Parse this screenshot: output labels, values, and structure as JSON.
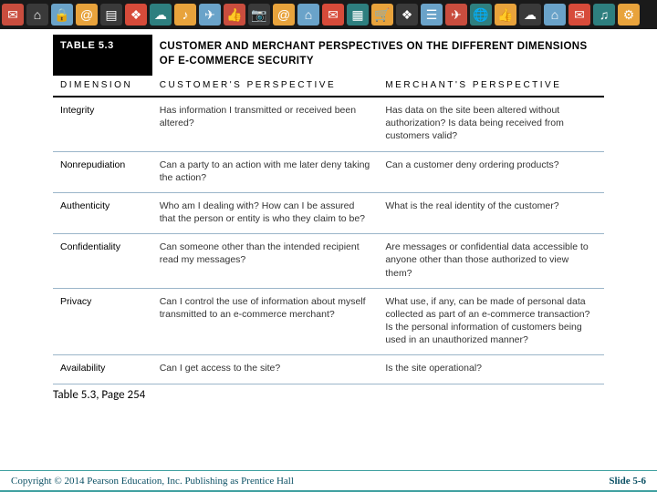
{
  "banner": {
    "icons": [
      {
        "bg": "#c94d3e",
        "glyph": "✉"
      },
      {
        "bg": "#3a3a3a",
        "glyph": "⌂"
      },
      {
        "bg": "#6aa3c9",
        "glyph": "🔒"
      },
      {
        "bg": "#e8a33c",
        "glyph": "@"
      },
      {
        "bg": "#3a3a3a",
        "glyph": "▤"
      },
      {
        "bg": "#d74b3a",
        "glyph": "❖"
      },
      {
        "bg": "#2e7f7f",
        "glyph": "☁"
      },
      {
        "bg": "#e8a33c",
        "glyph": "♪"
      },
      {
        "bg": "#6aa3c9",
        "glyph": "✈"
      },
      {
        "bg": "#c94d3e",
        "glyph": "👍"
      },
      {
        "bg": "#3a3a3a",
        "glyph": "📷"
      },
      {
        "bg": "#e8a33c",
        "glyph": "@"
      },
      {
        "bg": "#6aa3c9",
        "glyph": "⌂"
      },
      {
        "bg": "#d74b3a",
        "glyph": "✉"
      },
      {
        "bg": "#2e7f7f",
        "glyph": "▦"
      },
      {
        "bg": "#e8a33c",
        "glyph": "🛒"
      },
      {
        "bg": "#3a3a3a",
        "glyph": "❖"
      },
      {
        "bg": "#6aa3c9",
        "glyph": "☰"
      },
      {
        "bg": "#c94d3e",
        "glyph": "✈"
      },
      {
        "bg": "#2e7f7f",
        "glyph": "🌐"
      },
      {
        "bg": "#e8a33c",
        "glyph": "👍"
      },
      {
        "bg": "#3a3a3a",
        "glyph": "☁"
      },
      {
        "bg": "#6aa3c9",
        "glyph": "⌂"
      },
      {
        "bg": "#d74b3a",
        "glyph": "✉"
      },
      {
        "bg": "#2e7f7f",
        "glyph": "♫"
      },
      {
        "bg": "#e8a33c",
        "glyph": "⚙"
      }
    ]
  },
  "table": {
    "label": "TABLE 5.3",
    "title": "CUSTOMER AND MERCHANT PERSPECTIVES ON THE DIFFERENT DIMENSIONS OF E-COMMERCE SECURITY",
    "columns": {
      "dimension": "DIMENSION",
      "customer": "CUSTOMER'S PERSPECTIVE",
      "merchant": "MERCHANT'S PERSPECTIVE"
    },
    "rows": [
      {
        "dimension": "Integrity",
        "customer": "Has information I transmitted or received been altered?",
        "merchant": "Has data on the site been altered without authorization? Is data being received from customers valid?"
      },
      {
        "dimension": "Nonrepudiation",
        "customer": "Can a party to an action with me later deny taking the action?",
        "merchant": "Can a customer deny ordering products?"
      },
      {
        "dimension": "Authenticity",
        "customer": "Who am I dealing with? How can I be assured that the person or entity is who they claim to be?",
        "merchant": "What is the real identity of the customer?"
      },
      {
        "dimension": "Confidentiality",
        "customer": "Can someone other than the intended recipient read my messages?",
        "merchant": "Are messages or confidential data accessible to anyone other than those authorized to view them?"
      },
      {
        "dimension": "Privacy",
        "customer": "Can I control the use of information about myself transmitted to an e-commerce merchant?",
        "merchant": "What use, if any, can be made of personal data collected as part of an e-commerce transaction? Is the personal information of customers being used in an unauthorized manner?"
      },
      {
        "dimension": "Availability",
        "customer": "Can I get access to the site?",
        "merchant": "Is the site operational?"
      }
    ]
  },
  "caption": "Table 5.3, Page 254",
  "footer": {
    "copyright": "Copyright © 2014 Pearson Education, Inc. Publishing as Prentice Hall",
    "slide": "Slide 5-6"
  }
}
